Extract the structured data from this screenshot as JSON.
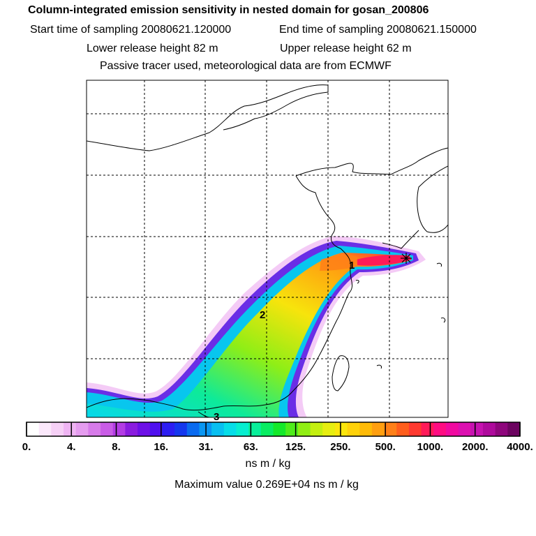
{
  "header": {
    "title": "Column-integrated emission sensitivity in nested domain for gosan_200806",
    "start_label": "Start time of sampling 20080621.120000",
    "end_label": "End time of sampling 20080621.150000",
    "lower_label": "Lower release height   82 m",
    "upper_label": "Upper release height   62 m",
    "tracer_label": "Passive tracer used, meteorological data are from ECMWF"
  },
  "chart_data": {
    "type": "heatmap",
    "title": "Column-integrated emission sensitivity in nested domain for gosan_200806",
    "colorbar": {
      "tick_labels": [
        "0.",
        "4.",
        "8.",
        "16.",
        "31.",
        "63.",
        "125.",
        "250.",
        "500.",
        "1000.",
        "2000.",
        "4000."
      ],
      "units": "ns m / kg",
      "colors": [
        "#ffffff",
        "#fbe8fb",
        "#f6d0f6",
        "#efb4f3",
        "#e59cef",
        "#d77be9",
        "#c95ce6",
        "#b33ce4",
        "#8a1cdf",
        "#6d10e6",
        "#4f10ef",
        "#2c1df2",
        "#1437ee",
        "#0a6aef",
        "#0a96f2",
        "#08bff0",
        "#06dde8",
        "#07eed0",
        "#08ef9a",
        "#09ed62",
        "#14e92a",
        "#4eec1a",
        "#90ee14",
        "#c4f010",
        "#e7ee10",
        "#fbe60c",
        "#ffd20a",
        "#ffbb08",
        "#ff9f10",
        "#ff8018",
        "#ff5e1c",
        "#ff3a30",
        "#ff1a58",
        "#ff0c82",
        "#f00aa0",
        "#dc10b0",
        "#c612b0",
        "#ae0a9c",
        "#8e067c",
        "#6c0460"
      ]
    },
    "maximum_label": "Maximum value  0.269E+04 ns m / kg",
    "map_labels": [
      "1",
      "2",
      "3"
    ],
    "receptor": "Gosan"
  },
  "colors": {
    "border": "#000000",
    "grid": "#000000",
    "coast": "#000000"
  }
}
